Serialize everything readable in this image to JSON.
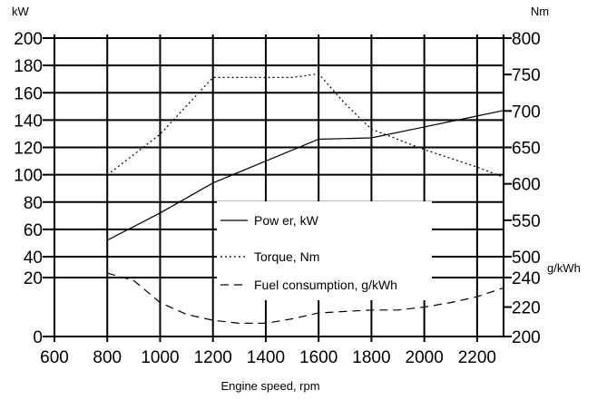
{
  "chart_data": {
    "type": "line",
    "title": "",
    "xlabel": "Engine speed, rpm",
    "xlim": [
      600,
      2300
    ],
    "x_ticks": [
      "600",
      "800",
      "1000",
      "1200",
      "1400",
      "1600",
      "1800",
      "2000",
      "2200"
    ],
    "axes": {
      "left_top": {
        "unit": "kW",
        "range": [
          40,
          200
        ],
        "ticks": [
          "200",
          "180",
          "160",
          "140",
          "120",
          "100",
          "80",
          "60",
          "40"
        ]
      },
      "left_bottom": {
        "range": [
          0,
          20
        ],
        "ticks": [
          "20",
          "0"
        ]
      },
      "right_top": {
        "unit": "Nm",
        "range": [
          500,
          800
        ],
        "ticks": [
          "800",
          "750",
          "700",
          "650",
          "600",
          "550",
          "500"
        ]
      },
      "right_bottom": {
        "unit": "g/kWh",
        "range": [
          200,
          240
        ],
        "ticks": [
          "240",
          "220",
          "200"
        ]
      }
    },
    "grid": true,
    "legend_position": "center",
    "series": [
      {
        "name": "Pow er, kW",
        "axis": "left_top",
        "style": "solid",
        "x": [
          800,
          1000,
          1200,
          1400,
          1600,
          1800,
          2000,
          2200,
          2300
        ],
        "y": [
          52,
          72,
          94,
          110,
          126,
          127,
          135,
          143,
          147
        ]
      },
      {
        "name": "Torque, Nm",
        "axis": "right_top",
        "style": "dotted",
        "x": [
          800,
          1000,
          1200,
          1300,
          1400,
          1500,
          1600,
          1700,
          1800,
          2000,
          2200,
          2300
        ],
        "y": [
          612,
          668,
          746,
          746,
          746,
          746,
          751,
          710,
          675,
          647,
          623,
          609
        ]
      },
      {
        "name": "Fuel consumption, g/kWh",
        "axis": "right_bottom",
        "style": "dashed",
        "x": [
          800,
          900,
          1000,
          1100,
          1200,
          1300,
          1400,
          1500,
          1600,
          1700,
          1800,
          1900,
          2000,
          2100,
          2200,
          2300
        ],
        "y": [
          243,
          238,
          223,
          215,
          211,
          209,
          209,
          212,
          216,
          217,
          218,
          218,
          220,
          223,
          227,
          233
        ]
      }
    ]
  }
}
